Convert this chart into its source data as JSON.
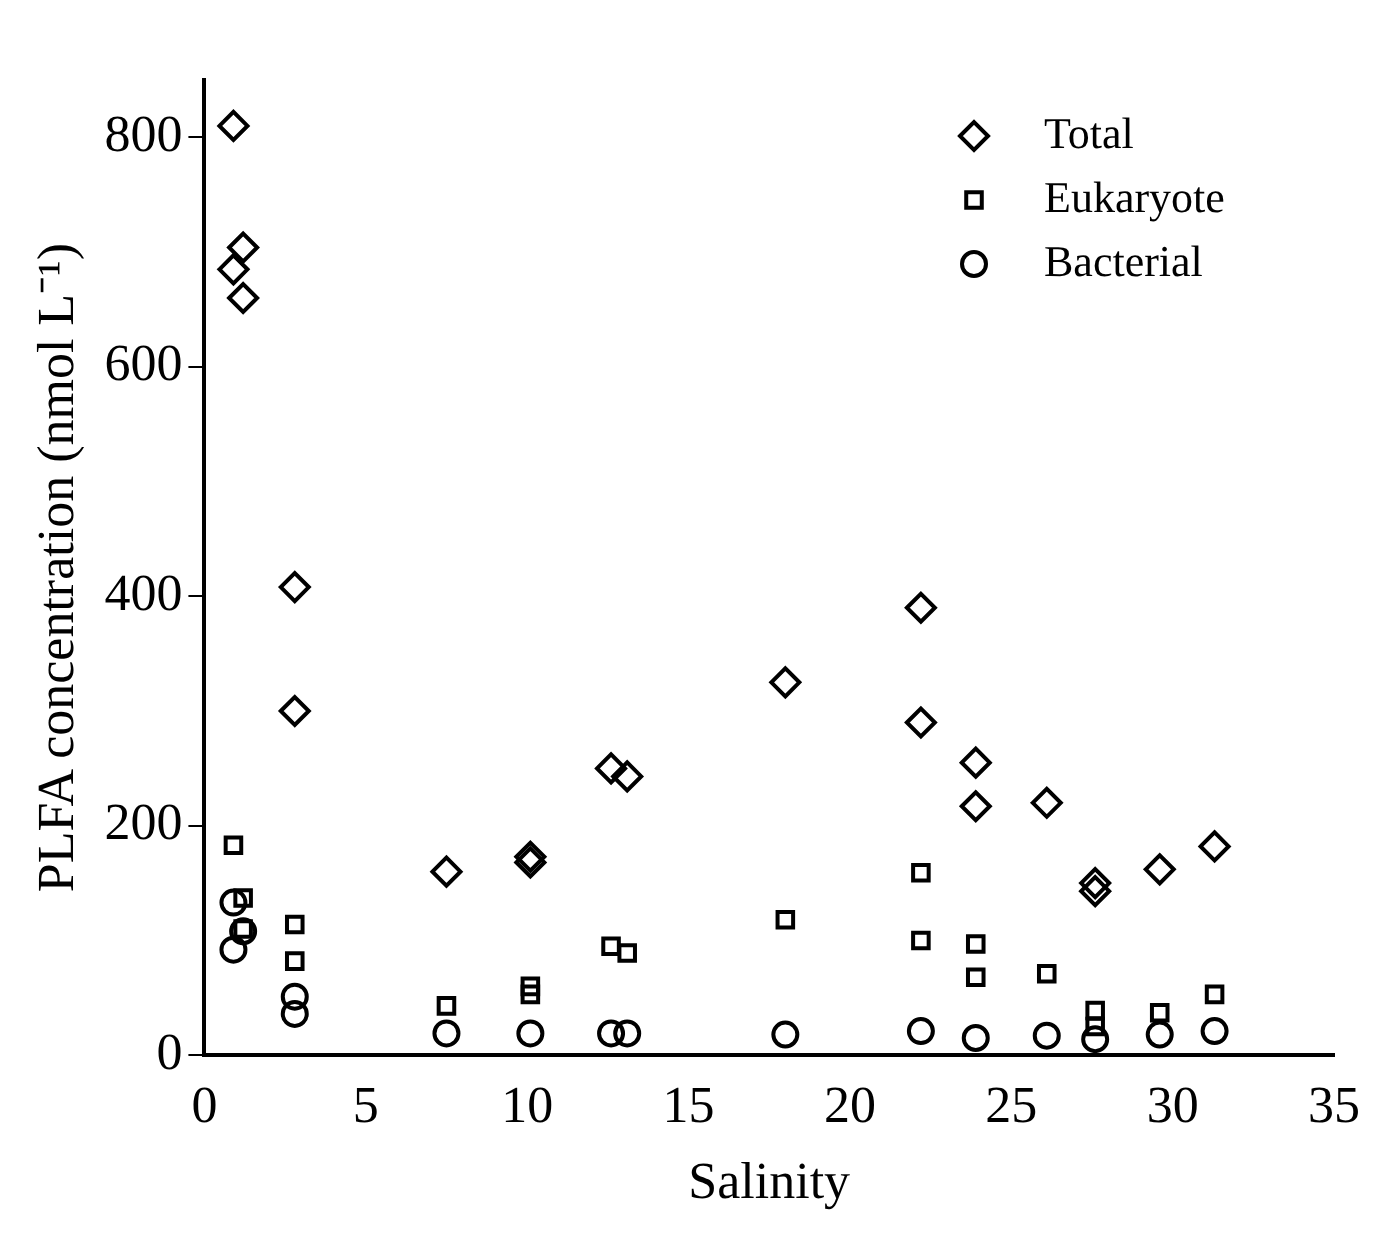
{
  "chart_data": {
    "type": "scatter",
    "xlabel": "Salinity",
    "ylabel": "PLFA concentration (nmol L⁻¹)",
    "xlim": [
      0,
      35
    ],
    "xticks": [
      0,
      5,
      10,
      15,
      20,
      25,
      30,
      35
    ],
    "ylim": [
      0,
      850
    ],
    "yticks": [
      0,
      200,
      400,
      600,
      800
    ],
    "grid": false,
    "legend": "top right",
    "series": [
      {
        "name": "Total",
        "color": "#000000",
        "marker": "diamond",
        "x": [
          0.9,
          1.2,
          0.9,
          1.2,
          2.8,
          2.8,
          7.5,
          10.1,
          10.1,
          12.6,
          13.1,
          18.0,
          22.2,
          22.2,
          23.9,
          23.9,
          26.1,
          27.6,
          27.6,
          29.6,
          31.3
        ],
        "values": [
          810,
          704,
          685,
          660,
          408,
          300,
          160,
          173,
          168,
          250,
          243,
          325,
          390,
          290,
          255,
          217,
          220,
          150,
          143,
          162,
          182
        ]
      },
      {
        "name": "Eukaryote",
        "color": "#000000",
        "marker": "square",
        "x": [
          0.9,
          1.2,
          1.2,
          2.8,
          2.8,
          7.5,
          10.1,
          10.1,
          12.6,
          13.1,
          18.0,
          22.2,
          22.2,
          23.9,
          23.9,
          26.1,
          27.6,
          27.6,
          29.6,
          31.3
        ],
        "values": [
          183,
          137,
          110,
          114,
          82,
          43,
          60,
          53,
          95,
          89,
          118,
          159,
          100,
          97,
          68,
          71,
          39,
          25,
          37,
          53
        ]
      },
      {
        "name": "Bacterial",
        "color": "#000000",
        "marker": "circle",
        "x": [
          0.9,
          1.2,
          0.9,
          2.8,
          2.8,
          7.5,
          10.1,
          12.6,
          13.1,
          18.0,
          22.2,
          23.9,
          26.1,
          27.6,
          29.6,
          31.3
        ],
        "values": [
          133,
          108,
          92,
          51,
          36,
          19,
          19,
          19,
          19,
          18,
          21,
          15,
          17,
          14,
          18,
          21
        ]
      }
    ]
  }
}
